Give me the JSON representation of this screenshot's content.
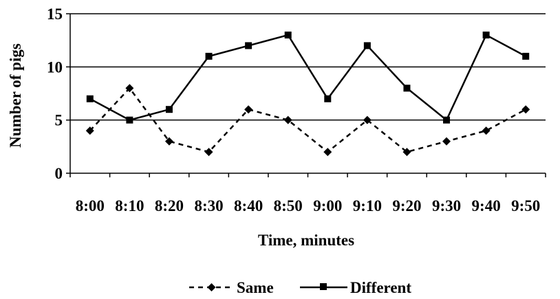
{
  "chart_data": {
    "type": "line",
    "title": "",
    "xlabel": "Time, minutes",
    "ylabel": "Number of pigs",
    "categories": [
      "8:00",
      "8:10",
      "8:20",
      "8:30",
      "8:40",
      "8:50",
      "9:00",
      "9:10",
      "9:20",
      "9:30",
      "9:40",
      "9:50"
    ],
    "ylim": [
      0,
      15
    ],
    "yticks": [
      0,
      5,
      10,
      15
    ],
    "grid": "horizontal",
    "legend_position": "bottom",
    "series": [
      {
        "name": "Same",
        "style": "dashed",
        "marker": "diamond",
        "color": "#000000",
        "values": [
          4,
          8,
          3,
          2,
          6,
          5,
          2,
          5,
          2,
          3,
          4,
          6
        ]
      },
      {
        "name": "Different",
        "style": "solid",
        "marker": "square",
        "color": "#000000",
        "values": [
          7,
          5,
          6,
          11,
          12,
          13,
          7,
          12,
          8,
          5,
          13,
          11
        ]
      }
    ]
  }
}
